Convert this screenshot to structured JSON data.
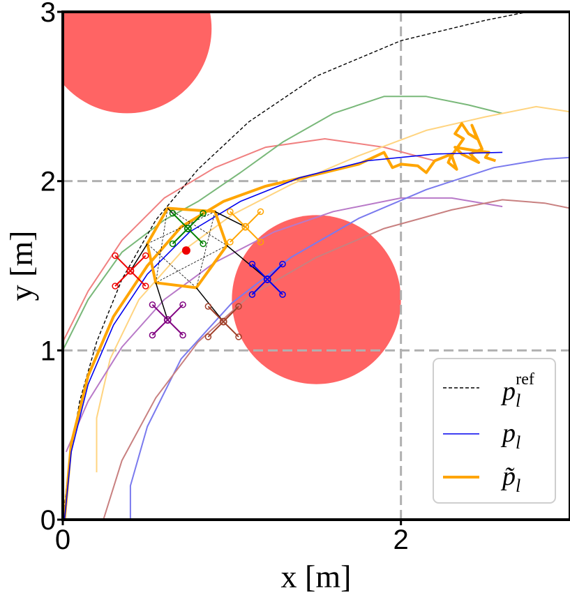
{
  "chart_data": {
    "type": "line",
    "title": "",
    "xlabel": "x [m]",
    "ylabel": "y [m]",
    "xlim": [
      0,
      3
    ],
    "ylim": [
      0,
      3
    ],
    "xticks": [
      0,
      2
    ],
    "xtick_labels": [
      "0",
      "2"
    ],
    "yticks": [
      0,
      1,
      2,
      3
    ],
    "ytick_labels": [
      "0",
      "1",
      "2",
      "3"
    ],
    "grid_x": [
      2
    ],
    "grid_y": [
      1,
      2
    ],
    "grid_style": "dashed",
    "legend_position": "bottom-right",
    "legend": [
      {
        "key": "ref",
        "label": "p",
        "sub": "l",
        "sup": "ref",
        "style": "dashed-black"
      },
      {
        "key": "pl",
        "label": "p",
        "sub": "l",
        "sup": "",
        "style": "solid-blue"
      },
      {
        "key": "ptilde",
        "label": "p̃",
        "sub": "l",
        "sup": "",
        "style": "thick-orange"
      }
    ],
    "obstacles": [
      {
        "name": "obstacle-top-left",
        "center": [
          0.38,
          2.9
        ],
        "radius": 0.5,
        "color": "#ff6464"
      },
      {
        "name": "obstacle-center",
        "center": [
          1.5,
          1.3
        ],
        "radius": 0.5,
        "color": "#ff6464"
      }
    ],
    "series": [
      {
        "name": "p_l_ref",
        "color": "#000000",
        "dashed": true,
        "width": 1.4,
        "points": [
          [
            0,
            0
          ],
          [
            0.04,
            0.35
          ],
          [
            0.1,
            0.7
          ],
          [
            0.2,
            1.05
          ],
          [
            0.35,
            1.42
          ],
          [
            0.55,
            1.77
          ],
          [
            0.8,
            2.07
          ],
          [
            1.1,
            2.35
          ],
          [
            1.5,
            2.62
          ],
          [
            2.0,
            2.83
          ],
          [
            2.5,
            2.95
          ],
          [
            2.75,
            3.0
          ]
        ]
      },
      {
        "name": "p_l",
        "color": "#0000ee",
        "dashed": false,
        "width": 1.6,
        "points": [
          [
            0.01,
            0
          ],
          [
            0.05,
            0.4
          ],
          [
            0.15,
            0.8
          ],
          [
            0.3,
            1.15
          ],
          [
            0.5,
            1.45
          ],
          [
            0.75,
            1.7
          ],
          [
            1.05,
            1.88
          ],
          [
            1.4,
            2.02
          ],
          [
            1.8,
            2.12
          ],
          [
            2.2,
            2.16
          ],
          [
            2.6,
            2.17
          ]
        ]
      },
      {
        "name": "p_tilde",
        "color": "#ffa500",
        "dashed": false,
        "width": 4,
        "points": [
          [
            0.01,
            0
          ],
          [
            0.05,
            0.45
          ],
          [
            0.15,
            0.85
          ],
          [
            0.3,
            1.2
          ],
          [
            0.5,
            1.5
          ],
          [
            0.7,
            1.73
          ],
          [
            0.95,
            1.88
          ],
          [
            1.2,
            1.97
          ],
          [
            1.5,
            2.04
          ],
          [
            1.75,
            2.1
          ],
          [
            1.9,
            2.17
          ],
          [
            1.95,
            2.08
          ],
          [
            2.0,
            2.1
          ],
          [
            2.1,
            2.09
          ],
          [
            2.15,
            2.05
          ],
          [
            2.2,
            2.12
          ],
          [
            2.3,
            2.16
          ],
          [
            2.28,
            2.11
          ],
          [
            2.33,
            2.07
          ],
          [
            2.3,
            2.15
          ],
          [
            2.37,
            2.25
          ],
          [
            2.32,
            2.28
          ],
          [
            2.36,
            2.34
          ],
          [
            2.4,
            2.28
          ],
          [
            2.45,
            2.25
          ],
          [
            2.42,
            2.33
          ],
          [
            2.48,
            2.19
          ],
          [
            2.41,
            2.16
          ],
          [
            2.46,
            2.11
          ],
          [
            2.36,
            2.16
          ],
          [
            2.32,
            2.2
          ],
          [
            2.44,
            2.18
          ],
          [
            2.52,
            2.17
          ],
          [
            2.5,
            2.14
          ],
          [
            2.56,
            2.12
          ]
        ]
      },
      {
        "name": "traj-red",
        "color": "#f08080",
        "dashed": false,
        "width": 2,
        "points": [
          [
            0,
            1.05
          ],
          [
            0.15,
            1.35
          ],
          [
            0.35,
            1.65
          ],
          [
            0.6,
            1.9
          ],
          [
            0.9,
            2.08
          ],
          [
            1.2,
            2.2
          ],
          [
            1.55,
            2.25
          ],
          [
            1.9,
            2.2
          ],
          [
            2.2,
            2.12
          ]
        ]
      },
      {
        "name": "traj-green",
        "color": "#79b879",
        "dashed": false,
        "width": 2,
        "points": [
          [
            0,
            1.0
          ],
          [
            0.15,
            1.3
          ],
          [
            0.35,
            1.58
          ],
          [
            0.6,
            1.77
          ],
          [
            0.8,
            1.88
          ],
          [
            1.05,
            2.05
          ],
          [
            1.3,
            2.23
          ],
          [
            1.6,
            2.4
          ],
          [
            1.9,
            2.5
          ],
          [
            2.15,
            2.5
          ],
          [
            2.4,
            2.45
          ],
          [
            2.6,
            2.4
          ]
        ]
      },
      {
        "name": "traj-yellow",
        "color": "#ffd480",
        "dashed": false,
        "width": 2,
        "points": [
          [
            0.2,
            0.28
          ],
          [
            0.2,
            0.6
          ],
          [
            0.28,
            0.95
          ],
          [
            0.45,
            1.3
          ],
          [
            0.7,
            1.58
          ],
          [
            1.0,
            1.8
          ],
          [
            1.35,
            1.98
          ],
          [
            1.75,
            2.15
          ],
          [
            2.15,
            2.3
          ],
          [
            2.5,
            2.38
          ],
          [
            2.8,
            2.44
          ],
          [
            3.0,
            2.41
          ]
        ]
      },
      {
        "name": "traj-purple",
        "color": "#b879c8",
        "dashed": false,
        "width": 2,
        "points": [
          [
            0.02,
            0.4
          ],
          [
            0.15,
            0.7
          ],
          [
            0.35,
            1.02
          ],
          [
            0.6,
            1.3
          ],
          [
            0.9,
            1.52
          ],
          [
            1.25,
            1.7
          ],
          [
            1.6,
            1.82
          ],
          [
            2.0,
            1.9
          ],
          [
            2.3,
            1.9
          ],
          [
            2.6,
            1.85
          ]
        ]
      },
      {
        "name": "traj-blue-light",
        "color": "#7a7aee",
        "dashed": false,
        "width": 2,
        "points": [
          [
            0.4,
            0
          ],
          [
            0.4,
            0.2
          ],
          [
            0.5,
            0.55
          ],
          [
            0.7,
            0.95
          ],
          [
            1.0,
            1.28
          ],
          [
            1.35,
            1.55
          ],
          [
            1.75,
            1.78
          ],
          [
            2.15,
            1.95
          ],
          [
            2.55,
            2.08
          ],
          [
            2.85,
            2.13
          ],
          [
            3.0,
            2.14
          ]
        ]
      },
      {
        "name": "traj-brown",
        "color": "#c88080",
        "dashed": false,
        "width": 2,
        "points": [
          [
            0.24,
            0
          ],
          [
            0.35,
            0.35
          ],
          [
            0.55,
            0.72
          ],
          [
            0.8,
            1.05
          ],
          [
            1.1,
            1.32
          ],
          [
            1.5,
            1.55
          ],
          [
            1.9,
            1.72
          ],
          [
            2.3,
            1.83
          ],
          [
            2.6,
            1.89
          ],
          [
            2.85,
            1.87
          ],
          [
            3.0,
            1.84
          ]
        ]
      }
    ],
    "formation": {
      "center": [
        0.73,
        1.59
      ],
      "center_color": "#ee0000",
      "hexagon": [
        [
          0.5,
          1.63
        ],
        [
          0.62,
          1.84
        ],
        [
          0.9,
          1.82
        ],
        [
          0.97,
          1.62
        ],
        [
          0.79,
          1.37
        ],
        [
          0.55,
          1.4
        ]
      ],
      "dashed_links": [
        [
          [
            0.5,
            1.63
          ],
          [
            0.9,
            1.82
          ]
        ],
        [
          [
            0.62,
            1.84
          ],
          [
            0.97,
            1.62
          ]
        ],
        [
          [
            0.9,
            1.82
          ],
          [
            0.79,
            1.37
          ]
        ],
        [
          [
            0.97,
            1.62
          ],
          [
            0.55,
            1.4
          ]
        ],
        [
          [
            0.79,
            1.37
          ],
          [
            0.5,
            1.63
          ]
        ],
        [
          [
            0.55,
            1.4
          ],
          [
            0.62,
            1.84
          ]
        ]
      ],
      "drones": [
        {
          "name": "drone-red",
          "color": "#ee0000",
          "pos": [
            0.4,
            1.47
          ],
          "target": [
            0.5,
            1.63
          ]
        },
        {
          "name": "drone-green",
          "color": "#008000",
          "pos": [
            0.74,
            1.72
          ],
          "target": [
            0.62,
            1.84
          ]
        },
        {
          "name": "drone-orange",
          "color": "#ffa500",
          "pos": [
            1.08,
            1.73
          ],
          "target": [
            0.9,
            1.82
          ]
        },
        {
          "name": "drone-blue",
          "color": "#0000ee",
          "pos": [
            1.21,
            1.42
          ],
          "target": [
            0.97,
            1.62
          ]
        },
        {
          "name": "drone-brown",
          "color": "#a0402a",
          "pos": [
            0.95,
            1.17
          ],
          "target": [
            0.79,
            1.37
          ]
        },
        {
          "name": "drone-purple",
          "color": "#800080",
          "pos": [
            0.62,
            1.18
          ],
          "target": [
            0.55,
            1.4
          ]
        }
      ],
      "drone_arm": 0.09
    }
  }
}
